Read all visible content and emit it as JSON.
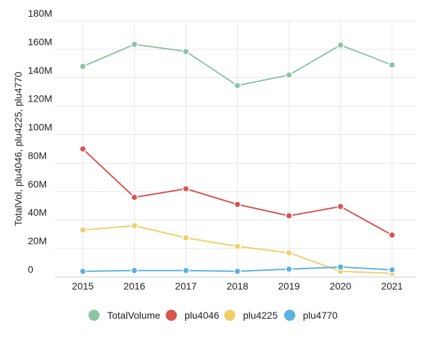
{
  "chart_data": {
    "type": "line",
    "title": "",
    "xlabel": "",
    "ylabel": "TotalVol, plu4046, plu4225, plu4770",
    "x": [
      "2015",
      "2016",
      "2017",
      "2018",
      "2019",
      "2020",
      "2021"
    ],
    "ylim": [
      0,
      180
    ],
    "yticks": [
      0,
      20,
      40,
      60,
      80,
      100,
      120,
      140,
      160,
      180
    ],
    "ytick_labels": [
      "0",
      "20M",
      "40M",
      "60M",
      "80M",
      "100M",
      "120M",
      "140M",
      "160M",
      "180M"
    ],
    "grid": true,
    "legend_position": "bottom",
    "series": [
      {
        "name": "TotalVolume",
        "color": "#8cc4a4",
        "values": [
          148,
          163.5,
          158.5,
          134.5,
          142,
          163,
          149
        ]
      },
      {
        "name": "plu4046",
        "color": "#d9534f",
        "values": [
          90,
          56,
          62,
          51,
          43,
          49.5,
          29.5
        ]
      },
      {
        "name": "plu4225",
        "color": "#f0cf6a",
        "values": [
          33,
          36,
          27.5,
          21.5,
          17,
          4,
          2.5
        ]
      },
      {
        "name": "plu4770",
        "color": "#5ab2e0",
        "values": [
          4,
          4.5,
          4.5,
          4,
          5.5,
          7,
          5
        ]
      }
    ]
  }
}
